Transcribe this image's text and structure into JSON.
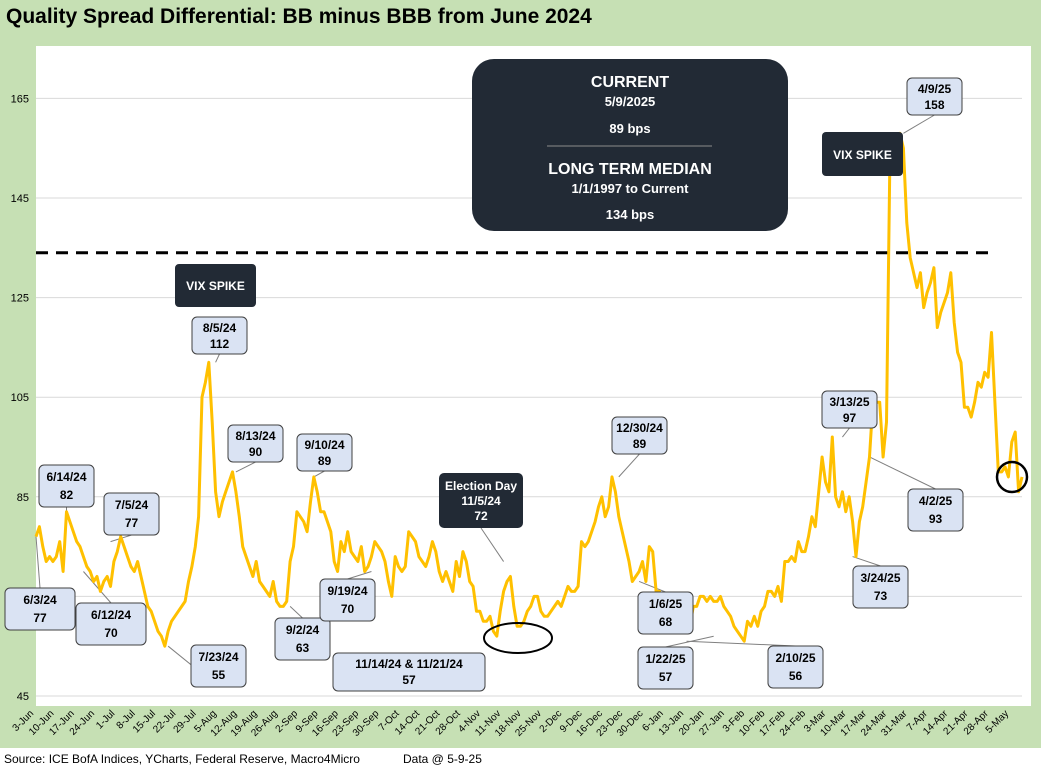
{
  "title": "Quality Spread Differential: BB minus BBB from June 2024",
  "footer": {
    "source": "Source: ICE BofA Indices, YCharts, Federal Reserve, Macro4Micro",
    "data_date": "Data @ 5-9-25"
  },
  "colors": {
    "frame": "#c6e0b4",
    "line": "#ffc000",
    "callout_fill": "#dae3f3",
    "dark_box": "#222a35",
    "grid": "#d9d9d9",
    "median_line": "#000000"
  },
  "chart_data": {
    "type": "line",
    "title": "Quality Spread Differential: BB minus BBB from June 2024",
    "xlabel": "",
    "ylabel": "",
    "ylim": [
      45,
      175
    ],
    "yticks": [
      45,
      65,
      85,
      105,
      125,
      145,
      165
    ],
    "grid": true,
    "x_tick_labels": [
      "3-Jun",
      "10-Jun",
      "17-Jun",
      "24-Jun",
      "1-Jul",
      "8-Jul",
      "15-Jul",
      "22-Jul",
      "29-Jul",
      "5-Aug",
      "12-Aug",
      "19-Aug",
      "26-Aug",
      "2-Sep",
      "9-Sep",
      "16-Sep",
      "23-Sep",
      "30-Sep",
      "7-Oct",
      "14-Oct",
      "21-Oct",
      "28-Oct",
      "4-Nov",
      "11-Nov",
      "18-Nov",
      "25-Nov",
      "2-Dec",
      "9-Dec",
      "16-Dec",
      "23-Dec",
      "30-Dec",
      "6-Jan",
      "13-Jan",
      "20-Jan",
      "27-Jan",
      "3-Feb",
      "10-Feb",
      "17-Feb",
      "24-Feb",
      "3-Mar",
      "10-Mar",
      "17-Mar",
      "24-Mar",
      "31-Mar",
      "7-Apr",
      "14-Apr",
      "21-Apr",
      "28-Apr",
      "5-May"
    ],
    "long_term_median": 134,
    "series": [
      {
        "values": [
          77,
          79,
          75,
          72,
          73,
          72,
          73,
          76,
          70,
          82,
          80,
          78,
          76,
          75,
          73,
          71,
          70,
          68,
          69,
          66,
          68,
          69,
          67,
          72,
          74,
          77,
          75,
          73,
          71,
          70,
          72,
          69,
          66,
          63,
          62,
          60,
          58,
          57,
          55,
          58,
          60,
          61,
          62,
          63,
          64,
          68,
          71,
          75,
          81,
          105,
          108,
          112,
          100,
          86,
          81,
          84,
          86,
          88,
          90,
          86,
          81,
          75,
          73,
          71,
          69,
          72,
          68,
          67,
          66,
          65,
          68,
          64,
          63,
          63,
          64,
          72,
          75,
          82,
          81,
          80,
          78,
          84,
          89,
          86,
          82,
          82,
          80,
          78,
          72,
          70,
          76,
          74,
          78,
          74,
          73,
          72,
          75,
          70,
          71,
          73,
          76,
          75,
          74,
          72,
          68,
          65,
          73,
          71,
          70,
          71,
          78,
          77,
          76,
          73,
          72,
          71,
          73,
          76,
          74,
          70,
          68,
          70,
          68,
          66,
          72,
          69,
          74,
          72,
          68,
          67,
          62,
          62,
          60,
          60,
          61,
          58,
          57,
          62,
          66,
          68,
          69,
          63,
          59,
          59,
          60,
          62,
          63,
          65,
          65,
          62,
          61,
          61,
          62,
          63,
          64,
          63,
          65,
          67,
          66,
          66,
          67,
          76,
          75,
          76,
          78,
          80,
          83,
          85,
          81,
          83,
          89,
          86,
          81,
          78,
          75,
          72,
          68,
          69,
          70,
          72,
          68,
          75,
          74,
          66,
          66,
          62,
          62,
          62,
          59,
          58,
          62,
          61,
          60,
          59,
          63,
          63,
          65,
          65,
          64,
          65,
          64,
          64,
          65,
          63,
          62,
          61,
          59,
          58,
          57,
          56,
          60,
          59,
          61,
          59,
          62,
          63,
          66,
          66,
          65,
          67,
          64,
          72,
          72,
          73,
          72,
          76,
          74,
          74,
          77,
          81,
          79,
          86,
          93,
          88,
          86,
          97,
          85,
          83,
          86,
          82,
          85,
          80,
          73,
          80,
          83,
          88,
          93,
          104,
          104,
          104,
          93,
          100,
          153,
          153,
          153,
          158,
          155,
          140,
          133,
          130,
          127,
          130,
          123,
          126,
          128,
          131,
          119,
          122,
          124,
          126,
          130,
          120,
          114,
          112,
          103,
          103,
          101,
          104,
          108,
          107,
          110,
          109,
          118,
          104,
          90,
          90,
          91,
          89,
          96,
          98,
          86,
          89
        ]
      }
    ],
    "annotations": [
      {
        "label": "6/3/24",
        "value": "77"
      },
      {
        "label": "6/12/24",
        "value": "70"
      },
      {
        "label": "6/14/24",
        "value": "82"
      },
      {
        "label": "7/5/24",
        "value": "77"
      },
      {
        "label": "7/23/24",
        "value": "55"
      },
      {
        "label": "8/5/24",
        "value": "112"
      },
      {
        "label": "8/13/24",
        "value": "90"
      },
      {
        "label": "9/2/24",
        "value": "63"
      },
      {
        "label": "9/10/24",
        "value": "89"
      },
      {
        "label": "9/19/24",
        "value": "70"
      },
      {
        "label": "11/14/24 & 11/21/24",
        "value": "57"
      },
      {
        "label": "12/30/24",
        "value": "89"
      },
      {
        "label": "1/6/25",
        "value": "68"
      },
      {
        "label": "1/22/25",
        "value": "57"
      },
      {
        "label": "2/10/25",
        "value": "56"
      },
      {
        "label": "3/13/25",
        "value": "97"
      },
      {
        "label": "3/24/25",
        "value": "73"
      },
      {
        "label": "4/2/25",
        "value": "93"
      },
      {
        "label": "4/9/25",
        "value": "158"
      }
    ],
    "dark_labels": [
      {
        "text": "VIX SPIKE"
      },
      {
        "text": "VIX SPIKE"
      },
      {
        "title": "Election Day",
        "date": "11/5/24",
        "value": "72"
      }
    ],
    "summary_box": {
      "current_heading": "CURRENT",
      "current_date": "5/9/2025",
      "current_value": "89 bps",
      "median_heading": "LONG TERM MEDIAN",
      "median_range": "1/1/1997 to Current",
      "median_value": "134 bps"
    }
  }
}
